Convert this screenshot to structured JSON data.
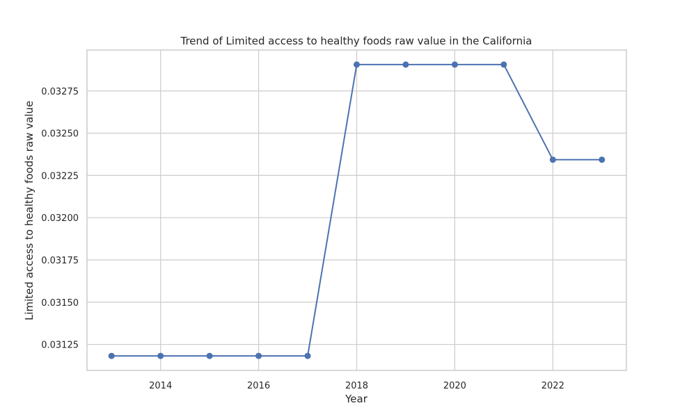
{
  "chart_data": {
    "type": "line",
    "title": "Trend of Limited access to healthy foods raw value in the California",
    "xlabel": "Year",
    "ylabel": "Limited access to healthy foods raw value",
    "x": [
      2013,
      2014,
      2015,
      2016,
      2017,
      2018,
      2019,
      2020,
      2021,
      2022,
      2023
    ],
    "series": [
      {
        "values": [
          0.031182,
          0.031182,
          0.031182,
          0.031182,
          0.031182,
          0.032906,
          0.032906,
          0.032906,
          0.032906,
          0.032343,
          0.032343
        ],
        "color": "#4c72b0",
        "marker": "circle"
      }
    ],
    "xlim": [
      2012.5,
      2023.5
    ],
    "ylim": [
      0.031096,
      0.032992
    ],
    "xticks": [
      "2014",
      "2016",
      "2018",
      "2020",
      "2022"
    ],
    "yticks": [
      "0.03125",
      "0.03150",
      "0.03175",
      "0.03200",
      "0.03225",
      "0.03250",
      "0.03275"
    ],
    "grid": true,
    "legend": "none"
  }
}
